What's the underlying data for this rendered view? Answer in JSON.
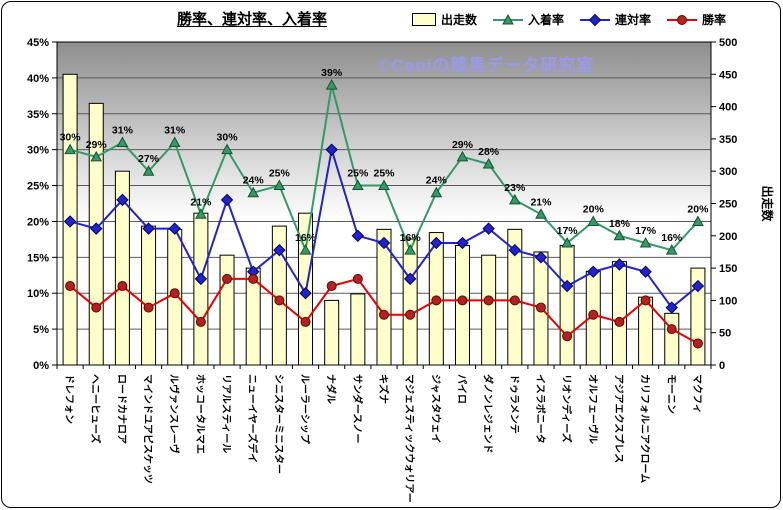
{
  "chart_data": {
    "type": "bar",
    "title": "勝率、連対率、入着率",
    "watermark": {
      "text": "©Caniの競馬データ研究室",
      "color": "#9999EE"
    },
    "legend_position": "top-right",
    "grid": true,
    "categories": [
      "ドレフォン",
      "ヘニーヒューズ",
      "ロードカナロア",
      "マインドユアビスケッツ",
      "ルヴァンスレーヴ",
      "ホッコータルマエ",
      "リアルスティール",
      "ニューイヤーズデイ",
      "シニスターミニスター",
      "ルーラーシップ",
      "ナダル",
      "サンダースノー",
      "キズナ",
      "マジェスティックウォリアー",
      "ジャスタウェイ",
      "パイロ",
      "ダノンレジェンド",
      "ドゥラメンテ",
      "イスラボニータ",
      "リオンディーズ",
      "オルフェーヴル",
      "アジアエクスプレス",
      "カリフォルニアクローム",
      "モーニン",
      "マクフィ"
    ],
    "left_axis": {
      "min": 0,
      "max": 45,
      "step": 5,
      "unit": "%",
      "tick_labels": [
        "0%",
        "5%",
        "10%",
        "15%",
        "20%",
        "25%",
        "30%",
        "35%",
        "40%",
        "45%"
      ]
    },
    "right_axis": {
      "min": 0,
      "max": 500,
      "step": 50,
      "title": "出走数",
      "tick_labels": [
        "0",
        "50",
        "100",
        "150",
        "200",
        "250",
        "300",
        "350",
        "400",
        "450",
        "500"
      ]
    },
    "series": [
      {
        "key": "starts",
        "name": "出走数",
        "chart_type": "bar",
        "axis": "right",
        "fill": "#FFFFCC",
        "stroke": "#000000",
        "values": [
          450,
          405,
          300,
          215,
          210,
          235,
          170,
          150,
          215,
          235,
          100,
          110,
          210,
          195,
          205,
          185,
          170,
          210,
          175,
          185,
          145,
          160,
          105,
          80,
          150
        ]
      },
      {
        "key": "place_rate",
        "name": "入着率",
        "chart_type": "line",
        "axis": "left",
        "marker": "triangle",
        "color": "#339966",
        "marker_fill": "#339966",
        "marker_stroke": "#14532D",
        "show_labels": true,
        "values": [
          30,
          29,
          31,
          27,
          31,
          21,
          30,
          24,
          25,
          16,
          39,
          25,
          25,
          16,
          24,
          29,
          28,
          23,
          21,
          17,
          20,
          18,
          17,
          16,
          20
        ]
      },
      {
        "key": "quinella_rate",
        "name": "連対率",
        "chart_type": "line",
        "axis": "left",
        "marker": "diamond",
        "color": "#2323CC",
        "marker_fill": "#2323CC",
        "marker_stroke": "#000066",
        "show_labels": false,
        "values": [
          20,
          19,
          23,
          19,
          19,
          12,
          23,
          13,
          16,
          10,
          30,
          18,
          17,
          12,
          17,
          17,
          19,
          16,
          15,
          11,
          13,
          14,
          13,
          8,
          11
        ]
      },
      {
        "key": "win_rate",
        "name": "勝率",
        "chart_type": "line",
        "axis": "left",
        "marker": "circle",
        "color": "#E60000",
        "marker_fill": "#B22222",
        "marker_stroke": "#6B0000",
        "show_labels": false,
        "values": [
          11,
          8,
          11,
          8,
          10,
          6,
          12,
          12,
          9,
          6,
          11,
          12,
          7,
          7,
          9,
          9,
          9,
          9,
          8,
          4,
          7,
          6,
          9,
          5,
          3
        ]
      }
    ]
  }
}
